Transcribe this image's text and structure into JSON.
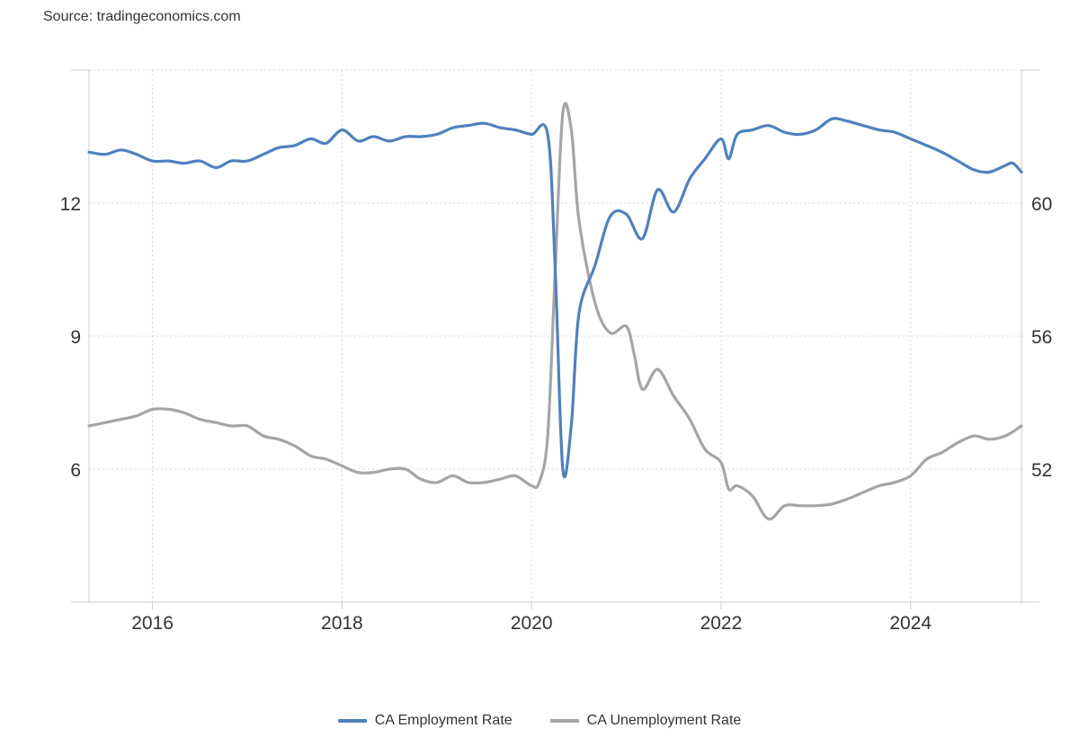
{
  "source": "Source: tradingeconomics.com",
  "colors": {
    "series1": "#4f81bd",
    "series2": "#a5a5a5",
    "grid": "#d9d9d9",
    "axis": "#cccccc",
    "text": "#333333"
  },
  "chart_data": {
    "type": "line",
    "title": "",
    "xlabel": "",
    "ylabel": "",
    "x_ticks": [
      "2016",
      "2018",
      "2020",
      "2022",
      "2024"
    ],
    "x_range": [
      2015.33,
      2025.17
    ],
    "left_axis": {
      "ticks": [
        "6",
        "9",
        "12"
      ],
      "range": [
        3,
        15
      ]
    },
    "right_axis": {
      "ticks": [
        "52",
        "56",
        "60"
      ],
      "range": [
        48,
        64
      ]
    },
    "grid": true,
    "legend_position": "bottom",
    "series": [
      {
        "name": "CA Employment Rate",
        "axis": "left",
        "points": [
          [
            2015.33,
            13.15
          ],
          [
            2015.5,
            13.1
          ],
          [
            2015.67,
            13.2
          ],
          [
            2015.83,
            13.1
          ],
          [
            2016.0,
            12.95
          ],
          [
            2016.17,
            12.95
          ],
          [
            2016.33,
            12.9
          ],
          [
            2016.5,
            12.95
          ],
          [
            2016.67,
            12.8
          ],
          [
            2016.83,
            12.95
          ],
          [
            2017.0,
            12.95
          ],
          [
            2017.17,
            13.1
          ],
          [
            2017.33,
            13.25
          ],
          [
            2017.5,
            13.3
          ],
          [
            2017.67,
            13.45
          ],
          [
            2017.83,
            13.35
          ],
          [
            2018.0,
            13.65
          ],
          [
            2018.17,
            13.4
          ],
          [
            2018.33,
            13.5
          ],
          [
            2018.5,
            13.4
          ],
          [
            2018.67,
            13.5
          ],
          [
            2018.83,
            13.5
          ],
          [
            2019.0,
            13.55
          ],
          [
            2019.17,
            13.7
          ],
          [
            2019.33,
            13.75
          ],
          [
            2019.5,
            13.8
          ],
          [
            2019.67,
            13.7
          ],
          [
            2019.83,
            13.65
          ],
          [
            2020.0,
            13.55
          ],
          [
            2020.17,
            13.55
          ],
          [
            2020.25,
            10.5
          ],
          [
            2020.33,
            6.0
          ],
          [
            2020.42,
            7.0
          ],
          [
            2020.5,
            9.5
          ],
          [
            2020.67,
            10.6
          ],
          [
            2020.83,
            11.7
          ],
          [
            2021.0,
            11.75
          ],
          [
            2021.17,
            11.2
          ],
          [
            2021.33,
            12.3
          ],
          [
            2021.5,
            11.8
          ],
          [
            2021.67,
            12.55
          ],
          [
            2021.83,
            13.0
          ],
          [
            2022.0,
            13.45
          ],
          [
            2022.08,
            13.0
          ],
          [
            2022.17,
            13.55
          ],
          [
            2022.33,
            13.65
          ],
          [
            2022.5,
            13.75
          ],
          [
            2022.67,
            13.6
          ],
          [
            2022.83,
            13.55
          ],
          [
            2023.0,
            13.65
          ],
          [
            2023.17,
            13.9
          ],
          [
            2023.33,
            13.85
          ],
          [
            2023.5,
            13.75
          ],
          [
            2023.67,
            13.65
          ],
          [
            2023.83,
            13.6
          ],
          [
            2024.0,
            13.45
          ],
          [
            2024.17,
            13.3
          ],
          [
            2024.33,
            13.15
          ],
          [
            2024.5,
            12.95
          ],
          [
            2024.67,
            12.75
          ],
          [
            2024.83,
            12.7
          ],
          [
            2025.0,
            12.85
          ],
          [
            2025.08,
            12.9
          ],
          [
            2025.17,
            12.7
          ]
        ]
      },
      {
        "name": "CA Unemployment Rate",
        "axis": "right",
        "points": [
          [
            2015.33,
            53.3
          ],
          [
            2015.5,
            53.4
          ],
          [
            2015.67,
            53.5
          ],
          [
            2015.83,
            53.6
          ],
          [
            2016.0,
            53.8
          ],
          [
            2016.17,
            53.8
          ],
          [
            2016.33,
            53.7
          ],
          [
            2016.5,
            53.5
          ],
          [
            2016.67,
            53.4
          ],
          [
            2016.83,
            53.3
          ],
          [
            2017.0,
            53.3
          ],
          [
            2017.17,
            53.0
          ],
          [
            2017.33,
            52.9
          ],
          [
            2017.5,
            52.7
          ],
          [
            2017.67,
            52.4
          ],
          [
            2017.83,
            52.3
          ],
          [
            2018.0,
            52.1
          ],
          [
            2018.17,
            51.9
          ],
          [
            2018.33,
            51.9
          ],
          [
            2018.5,
            52.0
          ],
          [
            2018.67,
            52.0
          ],
          [
            2018.83,
            51.7
          ],
          [
            2019.0,
            51.6
          ],
          [
            2019.17,
            51.8
          ],
          [
            2019.33,
            51.6
          ],
          [
            2019.5,
            51.6
          ],
          [
            2019.67,
            51.7
          ],
          [
            2019.83,
            51.8
          ],
          [
            2020.0,
            51.5
          ],
          [
            2020.08,
            51.6
          ],
          [
            2020.17,
            53.0
          ],
          [
            2020.25,
            58.0
          ],
          [
            2020.33,
            62.7
          ],
          [
            2020.42,
            62.2
          ],
          [
            2020.5,
            59.5
          ],
          [
            2020.67,
            57.0
          ],
          [
            2020.83,
            56.1
          ],
          [
            2021.0,
            56.3
          ],
          [
            2021.08,
            55.5
          ],
          [
            2021.17,
            54.4
          ],
          [
            2021.33,
            55.0
          ],
          [
            2021.5,
            54.2
          ],
          [
            2021.67,
            53.5
          ],
          [
            2021.83,
            52.6
          ],
          [
            2022.0,
            52.2
          ],
          [
            2022.08,
            51.4
          ],
          [
            2022.17,
            51.5
          ],
          [
            2022.33,
            51.2
          ],
          [
            2022.5,
            50.5
          ],
          [
            2022.67,
            50.9
          ],
          [
            2022.83,
            50.9
          ],
          [
            2023.0,
            50.9
          ],
          [
            2023.17,
            50.95
          ],
          [
            2023.33,
            51.1
          ],
          [
            2023.5,
            51.3
          ],
          [
            2023.67,
            51.5
          ],
          [
            2023.83,
            51.6
          ],
          [
            2024.0,
            51.8
          ],
          [
            2024.17,
            52.3
          ],
          [
            2024.33,
            52.5
          ],
          [
            2024.5,
            52.8
          ],
          [
            2024.67,
            53.0
          ],
          [
            2024.83,
            52.9
          ],
          [
            2025.0,
            53.0
          ],
          [
            2025.17,
            53.3
          ]
        ]
      }
    ]
  }
}
